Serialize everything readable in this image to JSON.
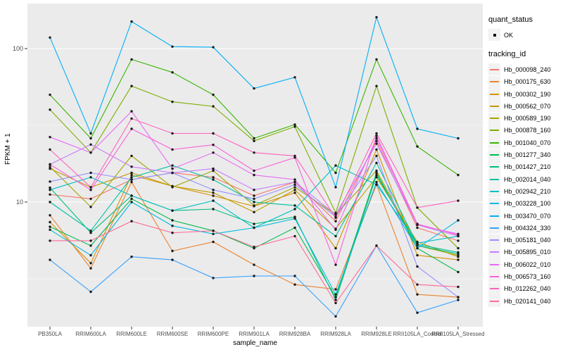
{
  "figure": {
    "background": "#ffffff",
    "panel_background": "#ebebeb",
    "gridline_color": "#ffffff",
    "point_color": "#1a1a1a",
    "tick_text_color": "#4d4d4d"
  },
  "legend": {
    "quant_status": {
      "title": "quant_status",
      "entries": [
        {
          "label": "OK",
          "marker": "point-icon",
          "color": "#000000"
        }
      ]
    },
    "tracking_id": {
      "title": "tracking_id"
    }
  },
  "chart_data": {
    "type": "line",
    "title": "",
    "xlabel": "sample_name",
    "ylabel": "FPKM + 1",
    "y_scale": "log10",
    "ylim": [
      1.4,
      210
    ],
    "yticks": [
      10,
      100
    ],
    "ytick_labels": [
      "10",
      "100"
    ],
    "y_minor_ticks": [
      3.1623,
      31.623
    ],
    "grid": true,
    "legend_position": "right",
    "marker": "black point on every vertex",
    "categories": [
      "PB350LA",
      "RRIM600LA",
      "RRIM600LE",
      "RRIM600SE",
      "RRIM600PE",
      "RRIM901LA",
      "RRIM928BA",
      "RRIM928LA",
      "RRIM928LE",
      "RRII105LA_Control",
      "RRII105LA_Stressed"
    ],
    "series": [
      {
        "name": "Hb_000098_240",
        "color": "#F8766D",
        "values": [
          11.2,
          10.5,
          14,
          15.5,
          14.5,
          11,
          13.5,
          7.5,
          25,
          6.8,
          5.6
        ]
      },
      {
        "name": "Hb_000175_630",
        "color": "#EA8331",
        "values": [
          8.2,
          3.7,
          13.5,
          4.8,
          5.5,
          3.9,
          2.9,
          2.7,
          13,
          2.5,
          2.4
        ]
      },
      {
        "name": "Hb_000302_190",
        "color": "#D89000",
        "values": [
          7.4,
          4.0,
          15,
          12.7,
          11,
          9.4,
          11.5,
          5.0,
          22,
          4.5,
          4.2
        ]
      },
      {
        "name": "Hb_000562_070",
        "color": "#C09B00",
        "values": [
          16.5,
          12.5,
          15.5,
          12.7,
          11.5,
          8.6,
          12,
          6.7,
          14.5,
          5.5,
          4.4
        ]
      },
      {
        "name": "Hb_000589_190",
        "color": "#A3A500",
        "values": [
          17,
          9.3,
          20,
          12.5,
          16,
          9.5,
          12.5,
          8.3,
          16,
          5.2,
          4.5
        ]
      },
      {
        "name": "Hb_000878_160",
        "color": "#7CAE00",
        "values": [
          40,
          21,
          57,
          45,
          42,
          25,
          31,
          8.5,
          57,
          9.2,
          5.0
        ]
      },
      {
        "name": "Hb_001040_070",
        "color": "#39B600",
        "values": [
          50,
          26,
          85,
          70,
          50,
          26,
          32,
          15.5,
          85,
          23,
          15
        ]
      },
      {
        "name": "Hb_001277_340",
        "color": "#00BB4E",
        "values": [
          6.9,
          5.2,
          10.5,
          7.6,
          6.5,
          5.0,
          6.8,
          2.4,
          15.5,
          5.0,
          3.5
        ]
      },
      {
        "name": "Hb_001427_210",
        "color": "#00BF7D",
        "values": [
          12.4,
          6.3,
          11,
          8.8,
          9.0,
          7.2,
          8.0,
          2.3,
          15,
          5.2,
          4.6
        ]
      },
      {
        "name": "Hb_002014_040",
        "color": "#00C1A3",
        "values": [
          10,
          6.5,
          14.5,
          17.3,
          14,
          10,
          9.5,
          6.0,
          18,
          5.3,
          4.7
        ]
      },
      {
        "name": "Hb_002942_210",
        "color": "#00BFC4",
        "values": [
          12,
          14.5,
          11,
          8.8,
          10.2,
          6.8,
          9.0,
          17.3,
          13,
          5.4,
          6.0
        ]
      },
      {
        "name": "Hb_003228_100",
        "color": "#00BAE0",
        "values": [
          6.6,
          4.5,
          10,
          7.0,
          6.2,
          6.8,
          7.8,
          2.5,
          13.5,
          5.0,
          7.6
        ]
      },
      {
        "name": "Hb_003470_070",
        "color": "#00B0F6",
        "values": [
          118,
          28,
          150,
          103,
          102,
          55,
          65,
          12.5,
          160,
          30,
          26
        ]
      },
      {
        "name": "Hb_004324_330",
        "color": "#35A2FF",
        "values": [
          4.2,
          2.6,
          4.4,
          4.2,
          3.2,
          3.3,
          3.3,
          1.8,
          5.2,
          1.9,
          2.3
        ]
      },
      {
        "name": "Hb_005181_040",
        "color": "#9590FF",
        "values": [
          13.6,
          15.5,
          14,
          15.5,
          12,
          10.5,
          13,
          8.0,
          20,
          3.8,
          2.4
        ]
      },
      {
        "name": "Hb_005895_010",
        "color": "#C77CFF",
        "values": [
          17.6,
          23.7,
          17,
          15.5,
          16.5,
          12,
          13.5,
          8.3,
          24,
          7.1,
          6.0
        ]
      },
      {
        "name": "Hb_006022_010",
        "color": "#E76BF3",
        "values": [
          26.5,
          21,
          39,
          16.5,
          21,
          15,
          14,
          6.6,
          26,
          7.1,
          6.2
        ]
      },
      {
        "name": "Hb_006573_160",
        "color": "#FA62DB",
        "values": [
          17.6,
          12,
          30,
          22,
          23.6,
          16,
          19.5,
          3.9,
          27,
          7.2,
          6.1
        ]
      },
      {
        "name": "Hb_012262_040",
        "color": "#FF62BC",
        "values": [
          22,
          12.5,
          35,
          28,
          28,
          21,
          20,
          7.9,
          28,
          9.2,
          10.2
        ]
      },
      {
        "name": "Hb_020141_040",
        "color": "#FF6A98",
        "values": [
          5.6,
          5.6,
          7.5,
          6.3,
          6.5,
          5.1,
          6.0,
          2.2,
          5.2,
          2.9,
          2.8
        ]
      }
    ]
  }
}
